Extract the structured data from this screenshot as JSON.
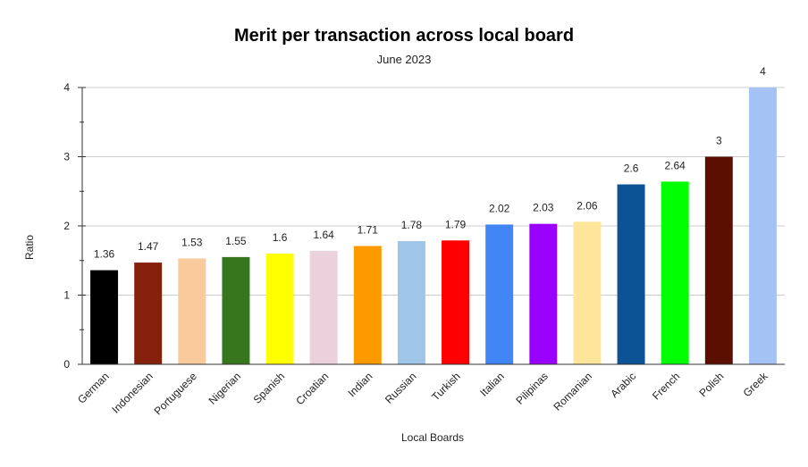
{
  "chart_data": {
    "type": "bar",
    "title": "Merit per transaction across local board",
    "subtitle": "June 2023",
    "xlabel": "Local Boards",
    "ylabel": "Ratio",
    "ylim": [
      0,
      4
    ],
    "yticks": [
      0,
      1,
      2,
      3,
      4
    ],
    "grid": true,
    "legend": "none",
    "categories": [
      "German",
      "Indonesian",
      "Portuguese",
      "Nigerian",
      "Spanish",
      "Croatian",
      "Indian",
      "Russian",
      "Turkish",
      "Italian",
      "Pilipinas",
      "Romanian",
      "Arabic",
      "French",
      "Polish",
      "Greek"
    ],
    "values": [
      1.36,
      1.47,
      1.53,
      1.55,
      1.6,
      1.64,
      1.71,
      1.78,
      1.79,
      2.02,
      2.03,
      2.06,
      2.6,
      2.64,
      3,
      4
    ],
    "colors": [
      "#000000",
      "#85200c",
      "#f9cb9c",
      "#38761d",
      "#ffff00",
      "#ead1dc",
      "#ff9900",
      "#9fc5e8",
      "#ff0000",
      "#4285f4",
      "#9900ff",
      "#ffe599",
      "#0b5394",
      "#00ff00",
      "#5b0f00",
      "#a4c2f4"
    ]
  }
}
